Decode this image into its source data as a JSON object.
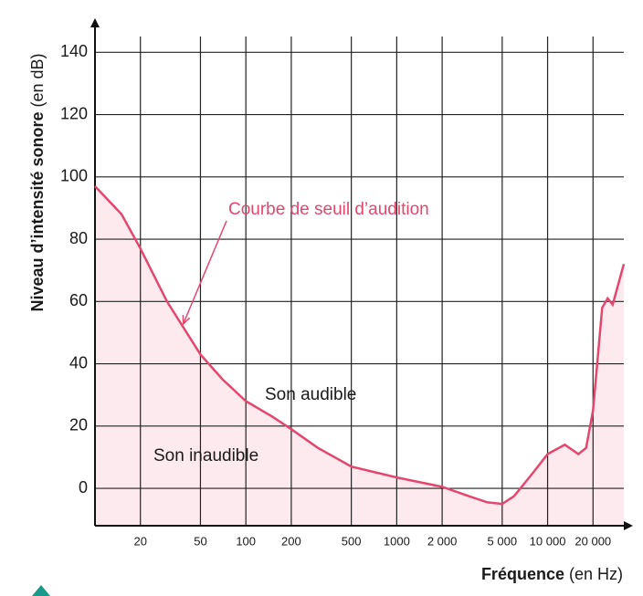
{
  "chart_data": {
    "type": "line",
    "y_label": "Niveau d’intensité sonore",
    "y_label_unit": "(en dB)",
    "x_label": "Fréquence",
    "x_label_unit": "(en Hz)",
    "annotations": [
      "Courbe de seuil d’audition",
      "Son audible",
      "Son inaudible"
    ],
    "x": [
      10,
      15,
      20,
      30,
      50,
      70,
      100,
      150,
      200,
      300,
      500,
      1000,
      2000,
      3000,
      4000,
      5000,
      6000,
      8000,
      10000,
      13000,
      16000,
      18000,
      20000,
      23000,
      25000,
      27000,
      32000
    ],
    "series": [
      {
        "name": "Courbe de seuil d’audition",
        "color": "#e4476e",
        "values": [
          97,
          88,
          77,
          60,
          43,
          35,
          28,
          23,
          19,
          13,
          7,
          3.5,
          0.5,
          -2.5,
          -4.5,
          -5,
          -2.5,
          5,
          11,
          14,
          11,
          13,
          25,
          58,
          61,
          59,
          72
        ]
      }
    ],
    "area_color": "#fdeaee",
    "xscale": "log",
    "xlim": [
      10,
      32000
    ],
    "ylim": [
      -12,
      148
    ],
    "xticks": [
      20,
      50,
      100,
      200,
      500,
      1000,
      {
        "value": 2000,
        "label": "2 000"
      },
      {
        "value": 5000,
        "label": "5 000"
      },
      {
        "value": 10000,
        "label": "10 000"
      },
      {
        "value": 20000,
        "label": "20 000"
      }
    ],
    "yticks": [
      0,
      20,
      40,
      60,
      80,
      100,
      120,
      140
    ],
    "grid": true
  }
}
